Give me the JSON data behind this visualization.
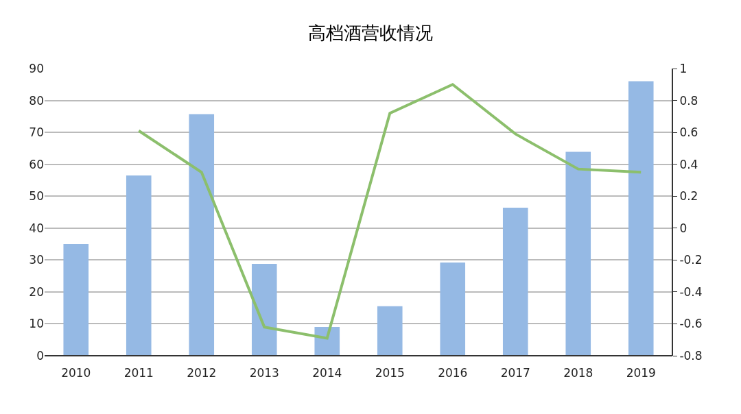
{
  "chart_data": {
    "type": "bar",
    "title": "高档酒营收情况",
    "categories": [
      "2010",
      "2011",
      "2012",
      "2013",
      "2014",
      "2015",
      "2016",
      "2017",
      "2018",
      "2019"
    ],
    "series": [
      {
        "color": "#95b9e4",
        "values": [
          35,
          56.5,
          75.7,
          28.8,
          9,
          15.5,
          29.2,
          46.4,
          63.9,
          86
        ]
      },
      {
        "type": "line",
        "axis": "y2",
        "color": "#8cbf6c",
        "values": [
          null,
          0.61,
          0.35,
          -0.62,
          -0.69,
          0.72,
          0.9,
          0.59,
          0.37,
          0.35
        ]
      }
    ],
    "ylim": [
      0,
      90
    ],
    "yticks": [
      0,
      10,
      20,
      30,
      40,
      50,
      60,
      70,
      80,
      90
    ],
    "y2lim": [
      -0.8,
      1
    ],
    "y2ticks": [
      -0.8,
      -0.6,
      -0.4,
      -0.2,
      0,
      0.2,
      0.4,
      0.6,
      0.8,
      1
    ],
    "grid": "y",
    "legend": false,
    "marker": "none",
    "line_style": "solid"
  }
}
